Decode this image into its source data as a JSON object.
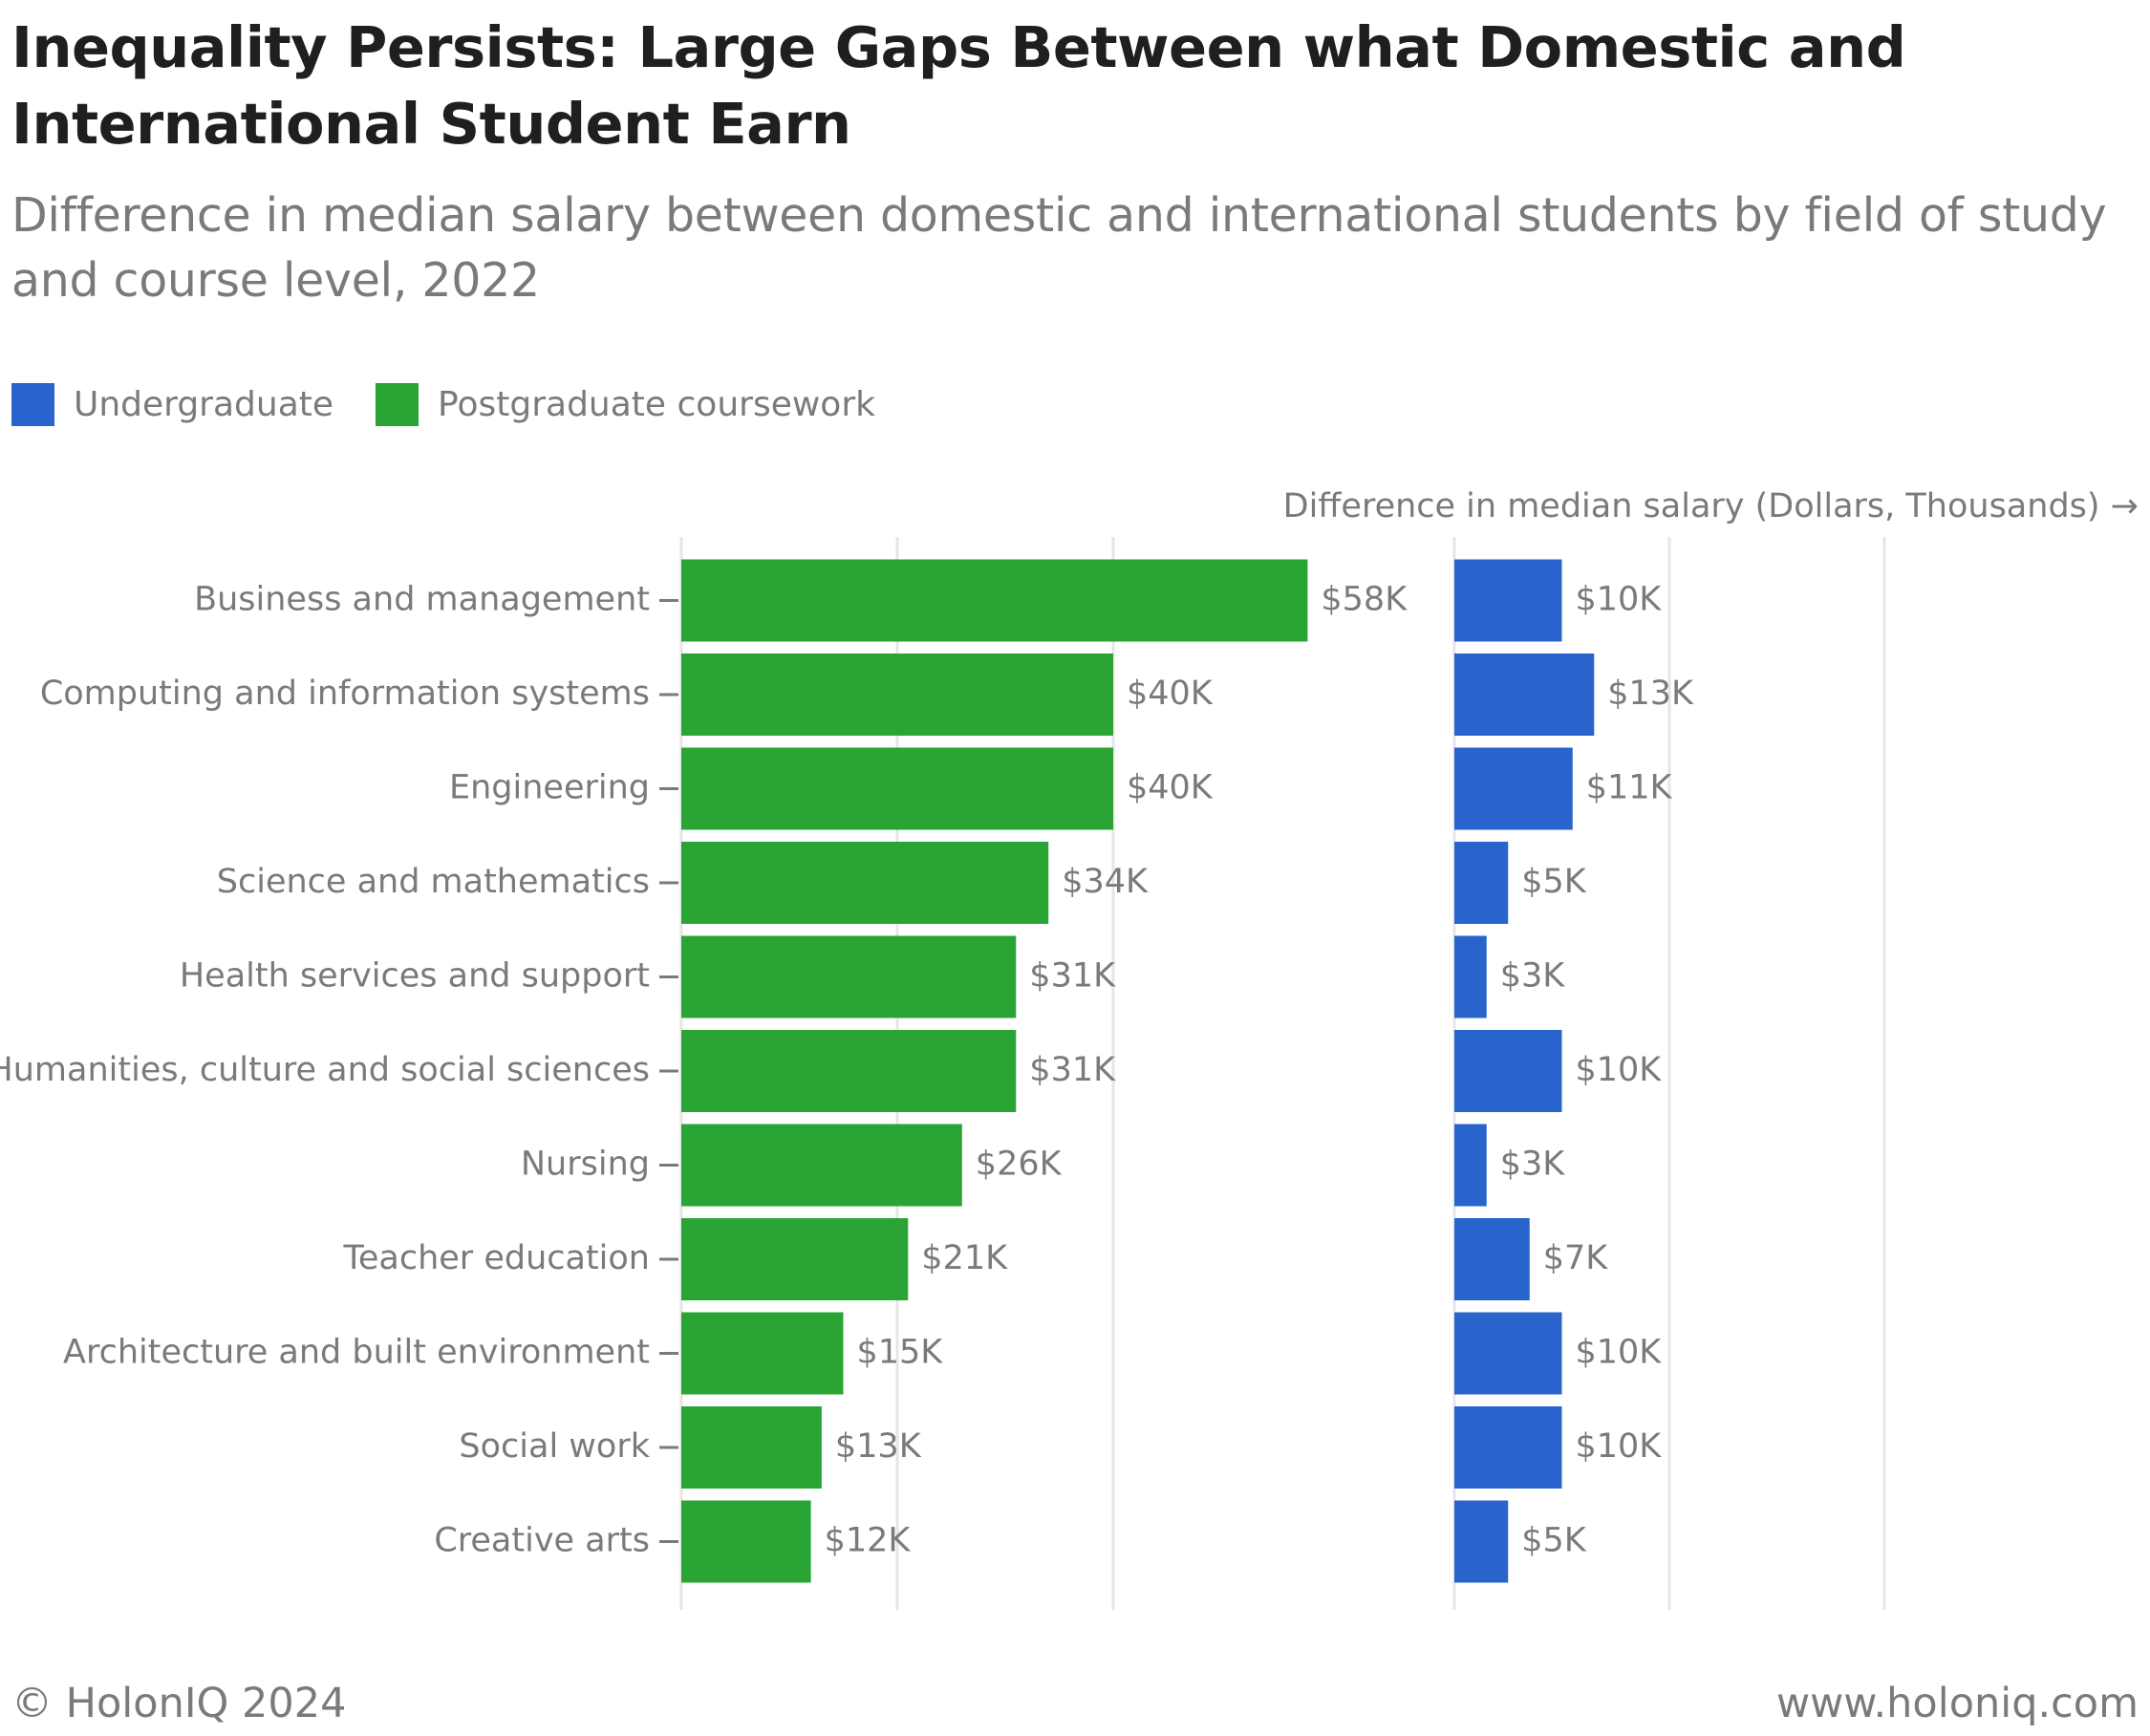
{
  "title": "Inequality Persists: Large Gaps Between what Domestic and International Student Earn",
  "subtitle": "Difference in median salary between domestic and international students by field of study and course level, 2022",
  "footer": {
    "copyright": "© HolonIQ 2024",
    "website": "www.holoniq.com"
  },
  "colors": {
    "undergraduate": "#2864cc",
    "postgraduate": "#2aa535",
    "grid": "#e6e6e6",
    "text": "#7a7a7a"
  },
  "chart_data": {
    "type": "bar",
    "orientation": "horizontal",
    "title": "Inequality Persists: Large Gaps Between what Domestic and International Student Earn",
    "xlabel": "Difference in median salary (Dollars, Thousands) →",
    "ylabel": "",
    "legend": "top-left",
    "grid": true,
    "categories": [
      "Business and management",
      "Computing and information systems",
      "Engineering",
      "Science and mathematics",
      "Health services and support",
      "Humanities, culture and social sciences",
      "Nursing",
      "Teacher education",
      "Architecture and built environment",
      "Social work",
      "Creative arts"
    ],
    "series": [
      {
        "name": "Postgraduate coursework",
        "xlim": [
          0,
          58
        ],
        "values": [
          58,
          40,
          40,
          34,
          31,
          31,
          26,
          21,
          15,
          13,
          12
        ],
        "value_labels": [
          "$58K",
          "$40K",
          "$40K",
          "$34K",
          "$31K",
          "$31K",
          "$26K",
          "$21K",
          "$15K",
          "$13K",
          "$12K"
        ]
      },
      {
        "name": "Undergraduate",
        "xlim": [
          0,
          13
        ],
        "values": [
          10,
          13,
          11,
          5,
          3,
          10,
          3,
          7,
          10,
          10,
          5
        ],
        "value_labels": [
          "$10K",
          "$13K",
          "$11K",
          "$5K",
          "$3K",
          "$10K",
          "$3K",
          "$7K",
          "$10K",
          "$10K",
          "$5K"
        ]
      }
    ]
  }
}
